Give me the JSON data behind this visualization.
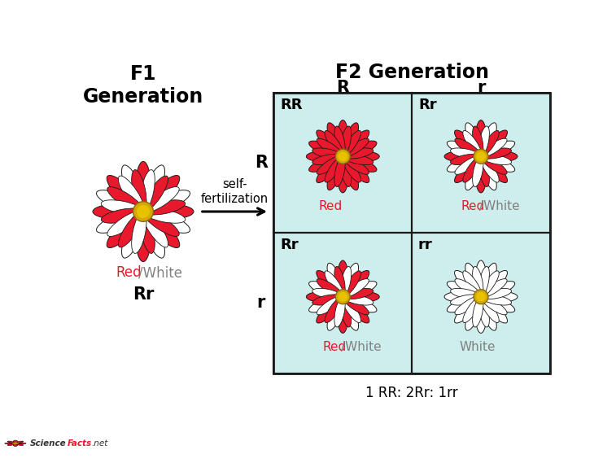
{
  "title_f1": "F1\nGeneration",
  "title_f2": "F2 Generation",
  "arrow_label": "self-\nfertilization",
  "grid_bg": "#ceeeed",
  "grid_border": "#222222",
  "cell_labels": [
    [
      "RR",
      "Rr"
    ],
    [
      "Rr",
      "rr"
    ]
  ],
  "cell_flower_types": [
    [
      "red",
      "red_white"
    ],
    [
      "red_white",
      "white"
    ]
  ],
  "cell_color_labels": [
    [
      "Red",
      "Red/White"
    ],
    [
      "Red/White",
      "White"
    ]
  ],
  "col_headers": [
    "R",
    "r"
  ],
  "row_headers": [
    "R",
    "r"
  ],
  "ratio_text": "1 RR: 2Rr: 1rr",
  "red_color": "#e8192c",
  "white_color": "#ffffff",
  "gold_color": "#d4aa00",
  "gold_color2": "#e8c200",
  "outline_color": "#1a1a1a",
  "bg_color": "#ffffff",
  "sciencefacts_color": "#e8192c",
  "sciencefacts_text_color": "#333333"
}
